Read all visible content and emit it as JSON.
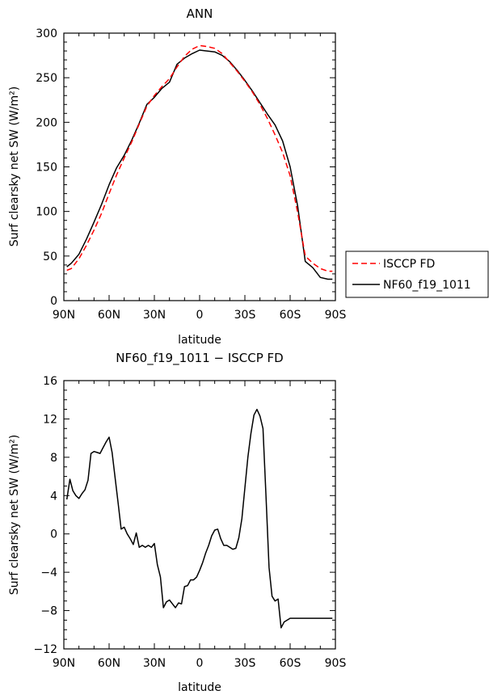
{
  "chart_data": [
    {
      "type": "line",
      "title": "ANN",
      "xlabel": "latitude",
      "ylabel": "Surf clearsky net SW (W/m²)",
      "xlim": [
        90,
        -90
      ],
      "ylim": [
        0,
        300
      ],
      "xticks": [
        {
          "v": 90,
          "label": "90N"
        },
        {
          "v": 60,
          "label": "60N"
        },
        {
          "v": 30,
          "label": "30N"
        },
        {
          "v": 0,
          "label": "0"
        },
        {
          "v": -30,
          "label": "30S"
        },
        {
          "v": -60,
          "label": "60S"
        },
        {
          "v": -90,
          "label": "90S"
        }
      ],
      "yticks": [
        {
          "v": 0,
          "label": "0"
        },
        {
          "v": 50,
          "label": "50"
        },
        {
          "v": 100,
          "label": "100"
        },
        {
          "v": 150,
          "label": "150"
        },
        {
          "v": 200,
          "label": "200"
        },
        {
          "v": 250,
          "label": "250"
        },
        {
          "v": 300,
          "label": "300"
        }
      ],
      "legend": {
        "placement": "right"
      },
      "series": [
        {
          "name": "ISCCP FD",
          "color": "#ff0000",
          "dash": "dashed",
          "x": [
            88,
            85,
            80,
            75,
            70,
            65,
            60,
            55,
            50,
            45,
            40,
            35,
            30,
            25,
            20,
            15,
            10,
            5,
            0,
            -5,
            -10,
            -15,
            -20,
            -25,
            -30,
            -35,
            -40,
            -45,
            -50,
            -55,
            -60,
            -65,
            -70,
            -75,
            -80,
            -85,
            -88
          ],
          "y": [
            34,
            36,
            47,
            62,
            79,
            98,
            120,
            141,
            160,
            178,
            198,
            218,
            230,
            240,
            249,
            262,
            274,
            282,
            286,
            285,
            283,
            277,
            267,
            257,
            246,
            234,
            220,
            204,
            186,
            166,
            140,
            99,
            50,
            42,
            36,
            33,
            33
          ]
        },
        {
          "name": "NF60_f19_1011",
          "color": "#000000",
          "dash": "solid",
          "x": [
            88,
            85,
            80,
            75,
            70,
            65,
            60,
            55,
            50,
            45,
            40,
            35,
            30,
            25,
            20,
            15,
            10,
            5,
            0,
            -5,
            -10,
            -15,
            -20,
            -25,
            -30,
            -35,
            -40,
            -45,
            -50,
            -55,
            -60,
            -65,
            -70,
            -75,
            -80,
            -85,
            -88
          ],
          "y": [
            38,
            42,
            52,
            69,
            88,
            108,
            130,
            149,
            163,
            180,
            199,
            220,
            228,
            238,
            245,
            265,
            272,
            277,
            281,
            280,
            279,
            275,
            268,
            258,
            247,
            235,
            222,
            209,
            197,
            179,
            150,
            106,
            44,
            37,
            26,
            24,
            24
          ]
        }
      ]
    },
    {
      "type": "line",
      "title": "NF60_f19_1011 − ISCCP FD",
      "xlabel": "latitude",
      "ylabel": "Surf clearsky net SW (W/m²)",
      "xlim": [
        90,
        -90
      ],
      "ylim": [
        -12,
        16
      ],
      "xticks": [
        {
          "v": 90,
          "label": "90N"
        },
        {
          "v": 60,
          "label": "60N"
        },
        {
          "v": 30,
          "label": "30N"
        },
        {
          "v": 0,
          "label": "0"
        },
        {
          "v": -30,
          "label": "30S"
        },
        {
          "v": -60,
          "label": "60S"
        },
        {
          "v": -90,
          "label": "90S"
        }
      ],
      "yticks": [
        {
          "v": -12,
          "label": "−12"
        },
        {
          "v": -8,
          "label": "−8"
        },
        {
          "v": -4,
          "label": "−4"
        },
        {
          "v": 0,
          "label": "0"
        },
        {
          "v": 4,
          "label": "4"
        },
        {
          "v": 8,
          "label": "8"
        },
        {
          "v": 12,
          "label": "12"
        },
        {
          "v": 16,
          "label": "16"
        }
      ],
      "series": [
        {
          "color": "#000000",
          "dash": "solid",
          "x": [
            88,
            86,
            84,
            82,
            80,
            78,
            76,
            74,
            72,
            70,
            68,
            66,
            64,
            62,
            60,
            58,
            56,
            54,
            52,
            50,
            48,
            46,
            44,
            42,
            40,
            38,
            36,
            34,
            32,
            30,
            28,
            26,
            24,
            22,
            20,
            18,
            16,
            14,
            12,
            10,
            8,
            6,
            4,
            2,
            0,
            -2,
            -4,
            -6,
            -8,
            -10,
            -12,
            -14,
            -16,
            -18,
            -20,
            -22,
            -24,
            -26,
            -28,
            -30,
            -32,
            -34,
            -36,
            -38,
            -40,
            -42,
            -44,
            -46,
            -48,
            -50,
            -52,
            -54,
            -56,
            -58,
            -60,
            -62,
            -64,
            -66,
            -68,
            -70,
            -72,
            -74,
            -76,
            -78,
            -80,
            -82,
            -84,
            -86,
            -88
          ],
          "y": [
            3.6,
            5.7,
            4.5,
            4.0,
            3.7,
            4.2,
            4.6,
            5.6,
            8.4,
            8.6,
            8.5,
            8.4,
            9.0,
            9.6,
            10.1,
            8.5,
            5.8,
            3.2,
            0.5,
            0.7,
            0.0,
            -0.5,
            -1.1,
            0.1,
            -1.4,
            -1.2,
            -1.4,
            -1.2,
            -1.4,
            -1.0,
            -3.2,
            -4.5,
            -7.7,
            -7.1,
            -6.9,
            -7.3,
            -7.7,
            -7.2,
            -7.3,
            -5.5,
            -5.4,
            -4.8,
            -4.8,
            -4.5,
            -3.8,
            -3.0,
            -2.0,
            -1.2,
            -0.2,
            0.4,
            0.5,
            -0.5,
            -1.2,
            -1.2,
            -1.4,
            -1.6,
            -1.5,
            -0.4,
            1.6,
            4.8,
            8.0,
            10.5,
            12.4,
            13.0,
            12.3,
            11.0,
            4.0,
            -3.5,
            -6.5,
            -7.0,
            -6.8,
            -9.8,
            -9.2,
            -9.0,
            -8.8,
            -8.8,
            -8.8,
            -8.8,
            -8.8,
            -8.8,
            -8.8,
            -8.8,
            -8.8,
            -8.8,
            -8.8,
            -8.8,
            -8.8,
            -8.8,
            -8.8
          ]
        }
      ]
    }
  ]
}
